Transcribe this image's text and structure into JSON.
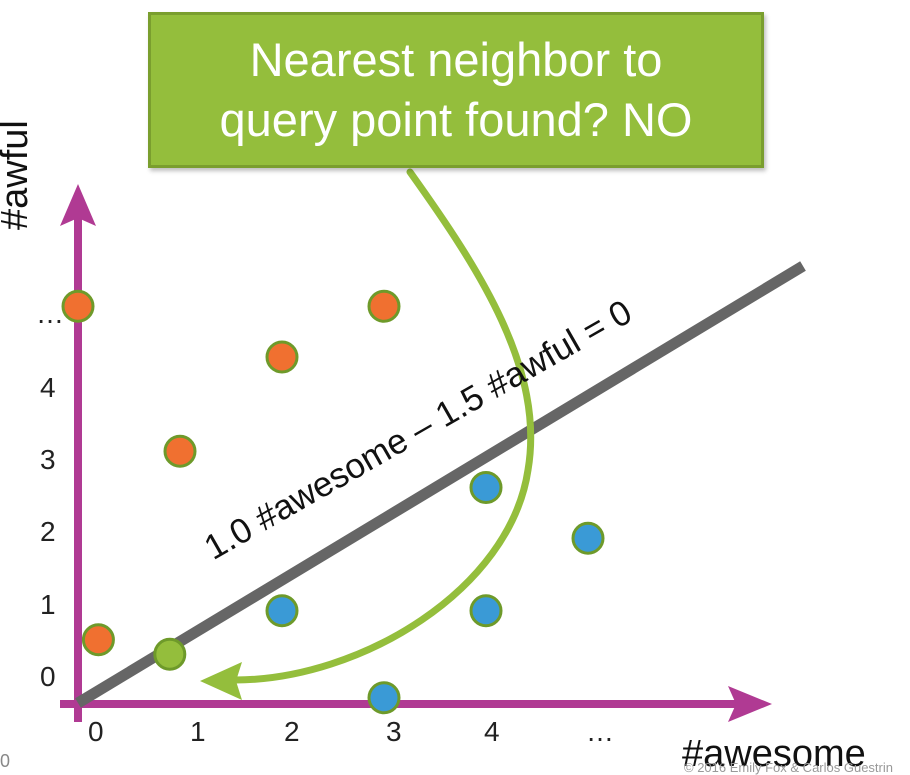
{
  "callout": {
    "line1": "Nearest neighbor to",
    "line2": "query point found? NO",
    "fill": "#94be3c"
  },
  "boundary": {
    "equation": "1.0 #awesome – 1.5 #awful = 0",
    "color": "#666666"
  },
  "axes": {
    "x_title": "#awesome",
    "y_title": "#awful",
    "color": "#b03a93",
    "x_ticks": [
      "0",
      "1",
      "2",
      "3",
      "4",
      "…"
    ],
    "y_ticks": [
      "0",
      "1",
      "2",
      "3",
      "4",
      "…"
    ]
  },
  "points": {
    "negative_color": "#f07030",
    "positive_color": "#3a9ad6",
    "query_color": "#94be3c",
    "outline_color": "#6e9a2a",
    "negative": [
      [
        0.2,
        0.5
      ],
      [
        1,
        3.1
      ],
      [
        2,
        4.4
      ],
      [
        3,
        5.1
      ],
      [
        0,
        5.1
      ]
    ],
    "positive": [
      [
        2,
        0.9
      ],
      [
        3,
        -0.3
      ],
      [
        4,
        0.9
      ],
      [
        4,
        2.6
      ],
      [
        5,
        1.9
      ]
    ],
    "query": [
      [
        0.9,
        0.3
      ]
    ]
  },
  "footer": {
    "page_number": "0",
    "copyright": "© 2016 Emily Fox & Carlos Guestrin"
  }
}
